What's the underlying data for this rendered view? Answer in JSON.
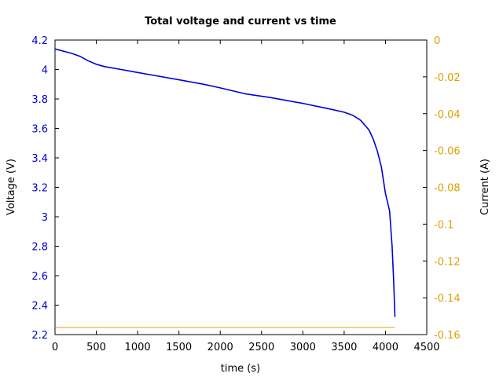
{
  "chart_data": {
    "type": "line",
    "title": "Total voltage and current vs time",
    "xlabel": "time (s)",
    "ylabel": "Voltage (V)",
    "y2label": "Current (A)",
    "xlim": [
      0,
      4500
    ],
    "ylim": [
      2.2,
      4.2
    ],
    "y2lim": [
      -0.16,
      0
    ],
    "x_ticks": [
      "0",
      "500",
      "1000",
      "1500",
      "2000",
      "2500",
      "3000",
      "3500",
      "4000",
      "4500"
    ],
    "y_ticks": [
      "2.2",
      "2.4",
      "2.6",
      "2.8",
      "3",
      "3.2",
      "3.4",
      "3.6",
      "3.8",
      "4",
      "4.2"
    ],
    "y2_ticks": [
      "-0.16",
      "-0.14",
      "-0.12",
      "-0.1",
      "-0.08",
      "-0.06",
      "-0.04",
      "-0.02",
      "0"
    ],
    "grid": false,
    "colors": {
      "voltage": "#0000dd",
      "current": "#e0a000",
      "left_axis": "#0000cc",
      "right_axis": "#e0a000"
    },
    "series": [
      {
        "axis": "left",
        "x": [
          0,
          100,
          200,
          300,
          400,
          500,
          600,
          800,
          1000,
          1200,
          1500,
          1800,
          2000,
          2300,
          2600,
          3000,
          3300,
          3500,
          3600,
          3700,
          3800,
          3850,
          3900,
          3950,
          4000,
          4050,
          4080,
          4100,
          4115
        ],
        "y": [
          4.14,
          4.125,
          4.11,
          4.09,
          4.06,
          4.035,
          4.02,
          4.0,
          3.98,
          3.96,
          3.93,
          3.9,
          3.875,
          3.835,
          3.81,
          3.77,
          3.735,
          3.71,
          3.69,
          3.655,
          3.59,
          3.53,
          3.45,
          3.34,
          3.16,
          3.04,
          2.8,
          2.55,
          2.32
        ]
      },
      {
        "axis": "right",
        "x": [
          0,
          4115
        ],
        "y": [
          -0.1561,
          -0.1561
        ]
      }
    ]
  }
}
